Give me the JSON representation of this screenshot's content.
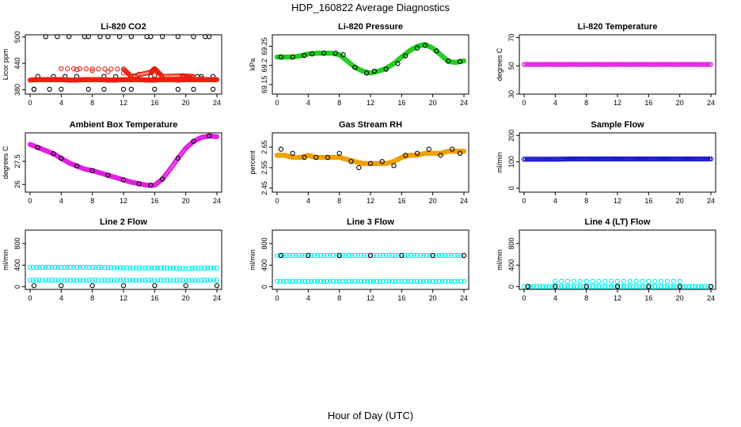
{
  "title": "HDP_160822  Average Diagnostics",
  "xlabel": "Hour of Day (UTC)",
  "colors": {
    "black": "#000000",
    "red": "#e8200f",
    "green": "#22cc22",
    "magenta": "#e020e0",
    "orange": "#f0a000",
    "blue": "#1010c8",
    "cyan": "#00f0f0"
  },
  "chart_data": [
    {
      "type": "scatter",
      "title": "Li-820 CO2",
      "ylabel": "Licor ppm",
      "xlim": [
        0,
        24
      ],
      "ylim": [
        370,
        505
      ],
      "xticks": [
        0,
        4,
        8,
        12,
        16,
        20,
        24
      ],
      "yticks": [
        380,
        440,
        500
      ],
      "series": [
        {
          "name": "co2 black",
          "color": "black",
          "x": [
            0.5,
            2,
            3.5,
            5,
            7,
            7.5,
            9,
            10,
            11.5,
            13,
            15,
            15.5,
            17,
            19,
            21,
            22.5,
            23,
            1,
            3,
            4.5,
            6,
            9.5,
            11,
            13.5,
            15.5,
            16.5,
            19.5,
            21.5,
            22,
            23.5,
            0.5,
            2.5,
            4,
            7.5,
            9.5,
            12,
            13,
            16,
            19,
            21,
            23.5
          ],
          "y": [
            381,
            501,
            501,
            501,
            501,
            501,
            501,
            501,
            501,
            501,
            501,
            501,
            501,
            501,
            501,
            501,
            501,
            410,
            410,
            410,
            410,
            410,
            410,
            410,
            410,
            410,
            410,
            410,
            410,
            410,
            381,
            381,
            381,
            381,
            381,
            381,
            381,
            381,
            381,
            381,
            381
          ]
        },
        {
          "name": "co2 red",
          "color": "red",
          "x": [
            0,
            1,
            2,
            3,
            4,
            5,
            6,
            7,
            8,
            9,
            10,
            11,
            12,
            13,
            14,
            15,
            16,
            17,
            18,
            19,
            20,
            21,
            22,
            23,
            24,
            4,
            12,
            13,
            15.5,
            16,
            17,
            19.5,
            21
          ],
          "y": [
            402,
            403,
            403,
            403,
            403,
            402,
            402,
            403,
            403,
            403,
            402,
            402,
            403,
            403,
            403,
            402,
            402,
            403,
            403,
            402,
            403,
            403,
            403,
            403,
            403,
            428,
            427,
            410,
            420,
            428,
            410,
            412,
            410
          ]
        }
      ]
    },
    {
      "type": "scatter",
      "title": "Li-820 Pressure",
      "ylabel": "kPa",
      "xlim": [
        0,
        24
      ],
      "ylim": [
        69.125,
        69.28
      ],
      "xticks": [
        0,
        4,
        8,
        12,
        16,
        20,
        24
      ],
      "yticks": [
        69.15,
        69.2,
        69.25
      ],
      "series": [
        {
          "name": "pressure green",
          "color": "green",
          "x": [
            0,
            1,
            2,
            3,
            4,
            5,
            6,
            7,
            8,
            9,
            10,
            11,
            12,
            13,
            14,
            15,
            16,
            17,
            18,
            19,
            20,
            21,
            22,
            23,
            24
          ],
          "y": [
            69.222,
            69.222,
            69.222,
            69.225,
            69.23,
            69.232,
            69.232,
            69.232,
            69.228,
            69.212,
            69.195,
            69.185,
            69.18,
            69.185,
            69.192,
            69.205,
            69.222,
            69.238,
            69.25,
            69.255,
            69.245,
            69.228,
            69.21,
            69.208,
            69.212
          ]
        },
        {
          "name": "pressure black",
          "color": "black",
          "x": [
            0.5,
            2,
            3.5,
            4.5,
            6,
            7.5,
            8.5,
            10,
            11.5,
            12.5,
            14,
            15.5,
            16.5,
            18,
            19,
            20.5,
            22,
            23.5
          ],
          "y": [
            69.222,
            69.222,
            69.226,
            69.23,
            69.232,
            69.232,
            69.228,
            69.195,
            69.18,
            69.185,
            69.19,
            69.205,
            69.225,
            69.245,
            69.252,
            69.238,
            69.212,
            69.21
          ]
        }
      ]
    },
    {
      "type": "scatter",
      "title": "Li-820 Temperature",
      "ylabel": "degrees C",
      "xlim": [
        0,
        24
      ],
      "ylim": [
        30,
        72
      ],
      "xticks": [
        0,
        4,
        8,
        12,
        16,
        20,
        24
      ],
      "yticks": [
        30,
        50,
        70
      ],
      "series": [
        {
          "name": "li820 temp",
          "color": "magenta",
          "x": [
            0,
            2,
            4,
            6,
            8,
            10,
            12,
            14,
            16,
            18,
            20,
            22,
            24
          ],
          "y": [
            51,
            51,
            51,
            51,
            51,
            51,
            51,
            51,
            51,
            51,
            51,
            51,
            51
          ]
        }
      ]
    },
    {
      "type": "scatter",
      "title": "Ambient Box Temperature",
      "ylabel": "degrees C",
      "xlim": [
        0,
        24
      ],
      "ylim": [
        25.5,
        29.35
      ],
      "xticks": [
        0,
        4,
        8,
        12,
        16,
        20,
        24
      ],
      "yticks": [
        26,
        27.5
      ],
      "series": [
        {
          "name": "box temp",
          "color": "magenta",
          "x": [
            0,
            1,
            2,
            3,
            4,
            5,
            6,
            7,
            8,
            9,
            10,
            11,
            12,
            13,
            14,
            15,
            16,
            17,
            18,
            19,
            20,
            21,
            22,
            23,
            24
          ],
          "y": [
            28.6,
            28.4,
            28.2,
            28.0,
            27.7,
            27.4,
            27.2,
            27.0,
            26.9,
            26.75,
            26.6,
            26.45,
            26.3,
            26.15,
            26.05,
            25.95,
            25.95,
            26.35,
            27.0,
            27.7,
            28.35,
            28.8,
            29.05,
            29.15,
            29.1
          ]
        },
        {
          "name": "box temp black",
          "color": "black",
          "x": [
            1,
            3,
            4,
            6,
            8,
            10,
            12,
            14,
            15.5,
            17,
            19,
            21,
            23
          ],
          "y": [
            28.4,
            28.0,
            27.7,
            27.2,
            26.9,
            26.6,
            26.3,
            26.05,
            25.95,
            26.35,
            27.7,
            28.8,
            29.15
          ]
        }
      ]
    },
    {
      "type": "scatter",
      "title": "Gas Stream RH",
      "ylabel": "percent",
      "xlim": [
        0,
        24
      ],
      "ylim": [
        2.43,
        2.72
      ],
      "xticks": [
        0,
        4,
        8,
        12,
        16,
        20,
        24
      ],
      "yticks": [
        2.45,
        2.55,
        2.65
      ],
      "series": [
        {
          "name": "rh orange",
          "color": "orange",
          "x": [
            0,
            1,
            2,
            3,
            4,
            5,
            6,
            7,
            8,
            9,
            10,
            11,
            12,
            13,
            14,
            15,
            16,
            17,
            18,
            19,
            20,
            21,
            22,
            23,
            24
          ],
          "y": [
            2.61,
            2.61,
            2.6,
            2.6,
            2.61,
            2.6,
            2.6,
            2.6,
            2.6,
            2.59,
            2.58,
            2.57,
            2.57,
            2.57,
            2.57,
            2.58,
            2.6,
            2.61,
            2.61,
            2.62,
            2.62,
            2.62,
            2.63,
            2.63,
            2.63
          ]
        },
        {
          "name": "rh black",
          "color": "black",
          "x": [
            0.5,
            2,
            3.5,
            5,
            6.5,
            8,
            9.5,
            10.5,
            12,
            13.5,
            15,
            16.5,
            18,
            19.5,
            21,
            22.5,
            23.5
          ],
          "y": [
            2.64,
            2.62,
            2.6,
            2.6,
            2.6,
            2.62,
            2.58,
            2.55,
            2.57,
            2.58,
            2.56,
            2.61,
            2.62,
            2.64,
            2.61,
            2.64,
            2.62
          ]
        }
      ]
    },
    {
      "type": "scatter",
      "title": "Sample Flow",
      "ylabel": "ml/min",
      "xlim": [
        0,
        24
      ],
      "ylim": [
        -15,
        210
      ],
      "xticks": [
        0,
        4,
        8,
        12,
        16,
        20,
        24
      ],
      "yticks": [
        0,
        100,
        200
      ],
      "series": [
        {
          "name": "sample flow",
          "color": "blue",
          "x": [
            0,
            2,
            4,
            6,
            8,
            10,
            12,
            14,
            16,
            18,
            20,
            22,
            24
          ],
          "y": [
            110,
            110,
            110,
            111,
            111,
            111,
            111,
            111,
            111,
            111,
            111,
            111,
            111
          ]
        }
      ]
    },
    {
      "type": "scatter",
      "title": "Line 2 Flow",
      "ylabel": "ml/min",
      "xlim": [
        0,
        24
      ],
      "ylim": [
        -50,
        1050
      ],
      "xticks": [
        0,
        4,
        8,
        12,
        16,
        20,
        24
      ],
      "yticks": [
        0,
        400,
        800
      ],
      "series": [
        {
          "name": "line2 cyan upper",
          "color": "cyan",
          "x": [
            0,
            4,
            8,
            12,
            16,
            20,
            24
          ],
          "y": [
            360,
            360,
            360,
            350,
            350,
            340,
            350
          ]
        },
        {
          "name": "line2 cyan lower",
          "color": "cyan",
          "x": [
            0,
            4,
            8,
            12,
            16,
            20,
            24
          ],
          "y": [
            120,
            120,
            120,
            120,
            120,
            120,
            120
          ]
        },
        {
          "name": "line2 black",
          "color": "black",
          "x": [
            0.5,
            4,
            8,
            12,
            16,
            20,
            24
          ],
          "y": [
            20,
            20,
            20,
            20,
            20,
            20,
            20
          ]
        }
      ]
    },
    {
      "type": "scatter",
      "title": "Line 3 Flow",
      "ylabel": "ml/min",
      "xlim": [
        0,
        24
      ],
      "ylim": [
        -50,
        1050
      ],
      "xticks": [
        0,
        4,
        8,
        12,
        16,
        20,
        24
      ],
      "yticks": [
        0,
        400,
        800
      ],
      "series": [
        {
          "name": "line3 cyan upper",
          "color": "cyan",
          "x": [
            0,
            4,
            8,
            12,
            16,
            20,
            24
          ],
          "y": [
            580,
            580,
            580,
            580,
            580,
            580,
            580
          ]
        },
        {
          "name": "line3 cyan lower",
          "color": "cyan",
          "x": [
            0,
            4,
            8,
            12,
            16,
            20,
            24
          ],
          "y": [
            100,
            100,
            100,
            100,
            100,
            100,
            100
          ]
        },
        {
          "name": "line3 black",
          "color": "black",
          "x": [
            0.5,
            4,
            8,
            12,
            16,
            20,
            24
          ],
          "y": [
            580,
            580,
            580,
            580,
            580,
            580,
            580
          ]
        }
      ]
    },
    {
      "type": "scatter",
      "title": "Line 4 (LT) Flow",
      "ylabel": "ml/min",
      "xlim": [
        0,
        24
      ],
      "ylim": [
        -50,
        1050
      ],
      "xticks": [
        0,
        4,
        8,
        12,
        16,
        20,
        24
      ],
      "yticks": [
        0,
        400,
        800
      ],
      "series": [
        {
          "name": "line4 cyan",
          "color": "cyan",
          "x": [
            0,
            4,
            8,
            12,
            16,
            20,
            24
          ],
          "y": [
            5,
            5,
            5,
            5,
            5,
            5,
            5
          ]
        },
        {
          "name": "line4 spikes",
          "color": "cyan",
          "x": [
            4,
            12,
            20
          ],
          "y": [
            100,
            100,
            100
          ]
        },
        {
          "name": "line4 black",
          "color": "black",
          "x": [
            0.5,
            4,
            8,
            12,
            16,
            20,
            24
          ],
          "y": [
            5,
            5,
            5,
            5,
            5,
            5,
            5
          ]
        }
      ]
    }
  ]
}
